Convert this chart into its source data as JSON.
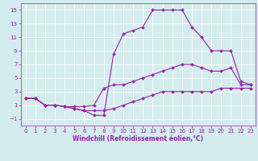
{
  "xlabel": "Windchill (Refroidissement éolien,°C)",
  "bg_color": "#d4ecee",
  "line_color": "#9b1fa8",
  "xlim": [
    -0.5,
    23.5
  ],
  "ylim": [
    -2,
    16
  ],
  "xticks": [
    0,
    1,
    2,
    3,
    4,
    5,
    6,
    7,
    8,
    9,
    10,
    11,
    12,
    13,
    14,
    15,
    16,
    17,
    18,
    19,
    20,
    21,
    22,
    23
  ],
  "yticks": [
    -1,
    1,
    3,
    5,
    7,
    9,
    11,
    13,
    15
  ],
  "line1_x": [
    0,
    1,
    2,
    3,
    4,
    5,
    6,
    7,
    8,
    9,
    10,
    11,
    12,
    13,
    14,
    15,
    16,
    17,
    18,
    19,
    20,
    21,
    22,
    23
  ],
  "line1_y": [
    2,
    2,
    1,
    1,
    0.8,
    0.8,
    0.8,
    1,
    3.5,
    4,
    4,
    4.5,
    5,
    5.5,
    6,
    6.5,
    7,
    7,
    6.5,
    6,
    6,
    6.5,
    4,
    4
  ],
  "line2_x": [
    0,
    1,
    2,
    3,
    4,
    5,
    6,
    7,
    8,
    9,
    10,
    11,
    12,
    13,
    14,
    15,
    16,
    17,
    18,
    19,
    20,
    21,
    22,
    23
  ],
  "line2_y": [
    2,
    2,
    1,
    1,
    0.8,
    0.5,
    0.2,
    0.2,
    0.2,
    0.5,
    1,
    1.5,
    2,
    2.5,
    3,
    3,
    3,
    3,
    3,
    3,
    3.5,
    3.5,
    3.5,
    3.5
  ],
  "line3_x": [
    0,
    1,
    2,
    3,
    4,
    5,
    6,
    7,
    8,
    9,
    10,
    11,
    12,
    13,
    14,
    15,
    16,
    17,
    18,
    19,
    20,
    21,
    22,
    23
  ],
  "line3_y": [
    2,
    2,
    1,
    1,
    0.8,
    0.5,
    0.2,
    -0.5,
    -0.5,
    8.5,
    11.5,
    12,
    12.5,
    15,
    15,
    15,
    15,
    12.5,
    11,
    9,
    9,
    9,
    4.5,
    4
  ],
  "grid_color": "#ffffff",
  "font_color": "#9b1fa8",
  "tick_fontsize": 5,
  "xlabel_fontsize": 5.5
}
